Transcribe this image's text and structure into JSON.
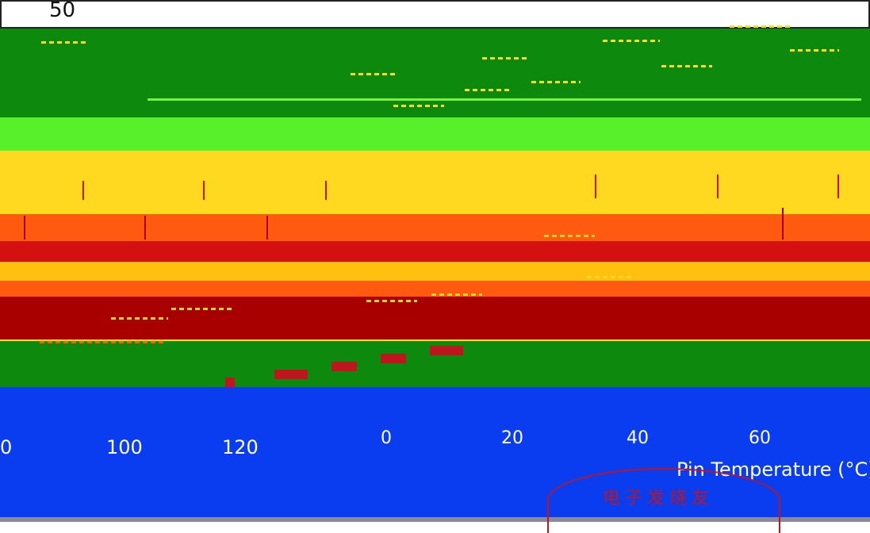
{
  "axis": {
    "y_top_label": "50",
    "x_ticks": [
      "0",
      "100",
      "120",
      "0",
      "20",
      "40",
      "60"
    ],
    "x_label": "Pin Temperature (°C)"
  },
  "stamp": {
    "text": "电子发烧友"
  },
  "colors": {
    "dark_green": "#0d8a0d",
    "light_green": "#58f02a",
    "yellow": "#ffd820",
    "orange": "#ff5a10",
    "red": "#d41010",
    "dark_red": "#a80000",
    "blue": "#0a3cf0",
    "stamp_red": "#c0141e"
  }
}
